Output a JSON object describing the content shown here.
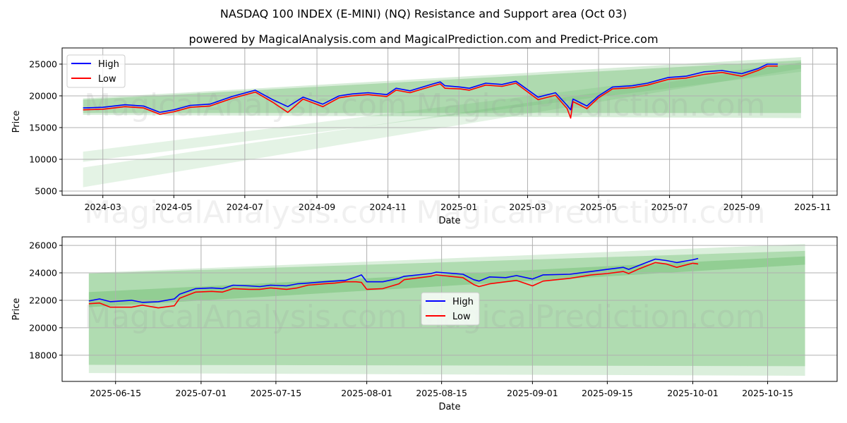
{
  "title": "NASDAQ 100 INDEX (E-MINI) (NQ) Resistance and Support area (Oct 03)",
  "subtitle": "powered by MagicalAnalysis.com and MagicalPrediction.com and Predict-Price.com",
  "watermarks": [
    "MagicalAnalysis.com",
    "MagicalPrediction.com"
  ],
  "colors": {
    "high": "#0000ff",
    "low": "#ff0000",
    "band": "#4caf50",
    "grid": "#b0b0b0"
  },
  "chart_data": [
    {
      "type": "line",
      "xlabel": "Date",
      "ylabel": "Price",
      "ylim": [
        4330,
        27550
      ],
      "xlim": [
        "2024-01-26",
        "2025-11-22"
      ],
      "yticks": [
        5000,
        10000,
        15000,
        20000,
        25000
      ],
      "xticks": [
        "2024-03-01",
        "2024-05-01",
        "2024-07-01",
        "2024-09-01",
        "2024-11-01",
        "2025-01-01",
        "2025-03-01",
        "2025-05-01",
        "2025-07-01",
        "2025-09-01",
        "2025-11-01"
      ],
      "xtick_labels": [
        "2024-03",
        "2024-05",
        "2024-07",
        "2024-09",
        "2024-11",
        "2025-01",
        "2025-03",
        "2025-05",
        "2025-07",
        "2025-09",
        "2025-11"
      ],
      "legend": {
        "placement": "top-left",
        "entries": [
          "High",
          "Low"
        ]
      },
      "grid": true,
      "bands": [
        {
          "x": [
            "2024-02-13",
            "2025-10-22"
          ],
          "start": [
            17000,
            19600
          ],
          "end": [
            16500,
            26100
          ],
          "opacity": 0.22
        },
        {
          "x": [
            "2024-02-13",
            "2025-10-22"
          ],
          "start": [
            17300,
            19400
          ],
          "end": [
            17300,
            25600
          ],
          "opacity": 0.3
        },
        {
          "x": [
            "2024-02-13",
            "2025-10-22"
          ],
          "start": [
            9600,
            11200
          ],
          "end": [
            23800,
            25300
          ],
          "opacity": 0.15
        },
        {
          "x": [
            "2024-02-13",
            "2025-10-22"
          ],
          "start": [
            5600,
            8700
          ],
          "end": [
            24300,
            25200
          ],
          "opacity": 0.15
        }
      ],
      "x": [
        "2024-02-13",
        "2024-03-01",
        "2024-03-20",
        "2024-04-05",
        "2024-04-19",
        "2024-05-01",
        "2024-05-15",
        "2024-06-01",
        "2024-06-20",
        "2024-07-10",
        "2024-07-25",
        "2024-08-07",
        "2024-08-20",
        "2024-09-06",
        "2024-09-20",
        "2024-10-01",
        "2024-10-15",
        "2024-10-31",
        "2024-11-08",
        "2024-11-20",
        "2024-12-10",
        "2024-12-16",
        "2024-12-20",
        "2025-01-02",
        "2025-01-10",
        "2025-01-24",
        "2025-02-07",
        "2025-02-19",
        "2025-03-10",
        "2025-03-25",
        "2025-04-04",
        "2025-04-07",
        "2025-04-09",
        "2025-04-21",
        "2025-05-01",
        "2025-05-13",
        "2025-05-30",
        "2025-06-12",
        "2025-06-30",
        "2025-07-15",
        "2025-07-31",
        "2025-08-15",
        "2025-09-01",
        "2025-09-15",
        "2025-09-23",
        "2025-10-02"
      ],
      "series": [
        {
          "name": "High",
          "values": [
            18100,
            18200,
            18600,
            18400,
            17400,
            17800,
            18500,
            18700,
            19900,
            20900,
            19400,
            18300,
            19800,
            18700,
            20000,
            20300,
            20500,
            20200,
            21200,
            20800,
            21900,
            22200,
            21600,
            21400,
            21200,
            22000,
            21800,
            22300,
            19800,
            20500,
            18500,
            17800,
            19500,
            18400,
            20000,
            21400,
            21600,
            22000,
            22900,
            23100,
            23800,
            24000,
            23500,
            24300,
            25000,
            25000
          ]
        },
        {
          "name": "Low",
          "values": [
            17800,
            17900,
            18300,
            18100,
            17100,
            17500,
            18200,
            18400,
            19600,
            20600,
            19000,
            17400,
            19500,
            18300,
            19700,
            20000,
            20200,
            19900,
            20900,
            20500,
            21600,
            21900,
            21200,
            21100,
            20900,
            21700,
            21500,
            22000,
            19400,
            20100,
            18000,
            16500,
            19100,
            18000,
            19700,
            21100,
            21300,
            21700,
            22600,
            22800,
            23400,
            23700,
            23100,
            24000,
            24700,
            24700
          ]
        }
      ]
    },
    {
      "type": "line",
      "xlabel": "Date",
      "ylabel": "Price",
      "ylim": [
        16090,
        26620
      ],
      "xlim": [
        "2025-06-05",
        "2025-10-28"
      ],
      "yticks": [
        18000,
        20000,
        22000,
        24000,
        26000
      ],
      "xticks": [
        "2025-06-15",
        "2025-07-01",
        "2025-07-15",
        "2025-08-01",
        "2025-08-15",
        "2025-09-01",
        "2025-09-15",
        "2025-10-01",
        "2025-10-15"
      ],
      "xtick_labels": [
        "2025-06-15",
        "2025-07-01",
        "2025-07-15",
        "2025-08-01",
        "2025-08-15",
        "2025-09-01",
        "2025-09-15",
        "2025-10-01",
        "2025-10-15"
      ],
      "legend": {
        "placement": "center",
        "entries": [
          "High",
          "Low"
        ]
      },
      "grid": true,
      "bands": [
        {
          "x": [
            "2025-06-10",
            "2025-10-22"
          ],
          "start": [
            16700,
            24000
          ],
          "end": [
            16500,
            26100
          ],
          "opacity": 0.2
        },
        {
          "x": [
            "2025-06-10",
            "2025-10-22"
          ],
          "start": [
            17300,
            23950
          ],
          "end": [
            17200,
            25600
          ],
          "opacity": 0.3
        },
        {
          "x": [
            "2025-06-10",
            "2025-10-22"
          ],
          "start": [
            21500,
            22600
          ],
          "end": [
            24600,
            25200
          ],
          "opacity": 0.3
        }
      ],
      "x": [
        "2025-06-10",
        "2025-06-12",
        "2025-06-14",
        "2025-06-18",
        "2025-06-20",
        "2025-06-23",
        "2025-06-26",
        "2025-06-27",
        "2025-06-30",
        "2025-07-03",
        "2025-07-05",
        "2025-07-07",
        "2025-07-10",
        "2025-07-12",
        "2025-07-14",
        "2025-07-17",
        "2025-07-19",
        "2025-07-21",
        "2025-07-24",
        "2025-07-26",
        "2025-07-28",
        "2025-07-30",
        "2025-07-31",
        "2025-08-01",
        "2025-08-04",
        "2025-08-07",
        "2025-08-08",
        "2025-08-13",
        "2025-08-14",
        "2025-08-19",
        "2025-08-21",
        "2025-08-22",
        "2025-08-24",
        "2025-08-27",
        "2025-08-29",
        "2025-09-01",
        "2025-09-03",
        "2025-09-08",
        "2025-09-12",
        "2025-09-15",
        "2025-09-18",
        "2025-09-19",
        "2025-09-21",
        "2025-09-24",
        "2025-09-26",
        "2025-09-28",
        "2025-10-01",
        "2025-10-02"
      ],
      "series": [
        {
          "name": "High",
          "values": [
            21950,
            22100,
            21900,
            22000,
            21850,
            21900,
            22100,
            22450,
            22850,
            22900,
            22850,
            23100,
            23050,
            23000,
            23100,
            23050,
            23200,
            23250,
            23350,
            23400,
            23450,
            23700,
            23850,
            23350,
            23350,
            23600,
            23750,
            23950,
            24050,
            23900,
            23500,
            23400,
            23700,
            23650,
            23800,
            23550,
            23850,
            23900,
            24100,
            24250,
            24400,
            24250,
            24550,
            25000,
            24900,
            24750,
            24950,
            25050
          ]
        },
        {
          "name": "Low",
          "values": [
            21750,
            21800,
            21500,
            21500,
            21650,
            21450,
            21600,
            22150,
            22600,
            22650,
            22600,
            22850,
            22800,
            22800,
            22900,
            22800,
            22900,
            23100,
            23200,
            23250,
            23350,
            23350,
            23300,
            22800,
            22850,
            23200,
            23500,
            23750,
            23850,
            23650,
            23150,
            23000,
            23200,
            23350,
            23450,
            23050,
            23400,
            23600,
            23850,
            23950,
            24100,
            23950,
            24300,
            24750,
            24650,
            24400,
            24700,
            24650
          ]
        }
      ]
    }
  ]
}
